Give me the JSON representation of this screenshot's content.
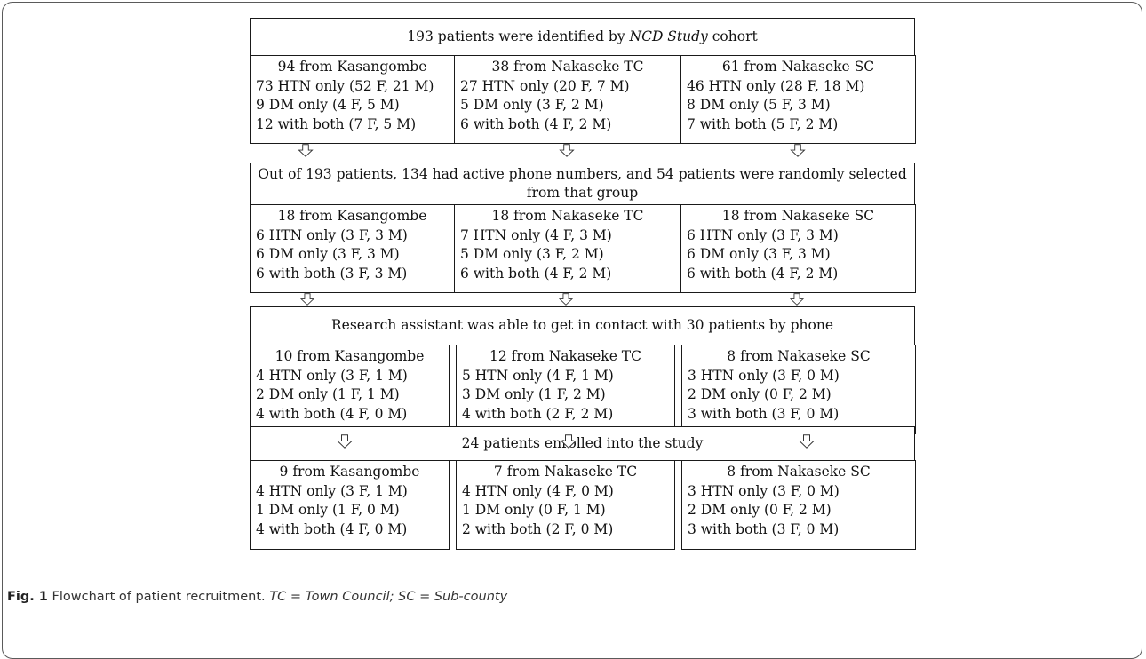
{
  "levels": [
    {
      "header": "193 patients were identified by NCD Study cohort",
      "header_pre": "193 patients were identified by ",
      "header_em": "NCD Study",
      "header_post": " cohort",
      "groups": [
        {
          "title": "94 from Kasangombe",
          "lines": [
            "73 HTN only (52 F, 21 M)",
            "9 DM only (4 F, 5 M)",
            "12 with both (7 F, 5 M)"
          ]
        },
        {
          "title": "38 from Nakaseke TC",
          "lines": [
            "27 HTN only (20 F, 7 M)",
            "5 DM only (3 F, 2 M)",
            "6 with both (4 F, 2 M)"
          ]
        },
        {
          "title": "61 from Nakaseke SC",
          "lines": [
            "46 HTN only (28 F, 18 M)",
            "8 DM only (5 F, 3 M)",
            "7 with both (5 F, 2 M)"
          ]
        }
      ]
    },
    {
      "header": "Out of 193 patients, 134 had active phone numbers, and 54 patients were randomly selected from that group",
      "groups": [
        {
          "title": "18 from Kasangombe",
          "lines": [
            "6 HTN only (3 F, 3 M)",
            "6 DM only (3 F, 3 M)",
            "6 with both (3 F, 3 M)"
          ]
        },
        {
          "title": "18 from Nakaseke TC",
          "lines": [
            "7 HTN only (4 F, 3 M)",
            "5 DM only (3 F, 2 M)",
            "6 with both (4 F, 2 M)"
          ]
        },
        {
          "title": "18 from Nakaseke SC",
          "lines": [
            "6 HTN only (3 F, 3 M)",
            "6 DM only (3 F, 3 M)",
            "6 with both (4 F, 2 M)"
          ]
        }
      ]
    },
    {
      "header": "Research assistant was able to get in contact with 30 patients by phone",
      "groups": [
        {
          "title": "10 from Kasangombe",
          "lines": [
            "4 HTN only (3 F, 1 M)",
            "2 DM only (1 F, 1 M)",
            "4 with both (4 F, 0 M)"
          ]
        },
        {
          "title": "12 from Nakaseke TC",
          "lines": [
            "5 HTN only (4 F, 1 M)",
            "3 DM only (1 F, 2 M)",
            "4 with both (2 F, 2 M)"
          ]
        },
        {
          "title": "8 from Nakaseke SC",
          "lines": [
            "3 HTN only (3 F, 0 M)",
            "2 DM only (0 F, 2 M)",
            "3 with both (3 F, 0 M)"
          ]
        }
      ]
    },
    {
      "header": "24 patients enrolled into the study",
      "groups": [
        {
          "title": "9 from Kasangombe",
          "lines": [
            "4 HTN only (3 F, 1 M)",
            "1 DM only (1 F, 0 M)",
            "4 with both (4 F, 0 M)"
          ]
        },
        {
          "title": "7 from Nakaseke TC",
          "lines": [
            "4 HTN only (4 F, 0 M)",
            "1 DM only (0 F, 1 M)",
            "2 with both (2 F, 0 M)"
          ]
        },
        {
          "title": "8 from Nakaseke SC",
          "lines": [
            "3 HTN only (3 F, 0 M)",
            "2 DM only (0 F, 2 M)",
            "3 with both (3 F, 0 M)"
          ]
        }
      ]
    }
  ],
  "caption": {
    "label": "Fig. 1",
    "text": " Flowchart of patient recruitment. ",
    "abbr1": "TC",
    "def1": " = Town Council; ",
    "abbr2": "SC",
    "def2": " = Sub-county"
  }
}
